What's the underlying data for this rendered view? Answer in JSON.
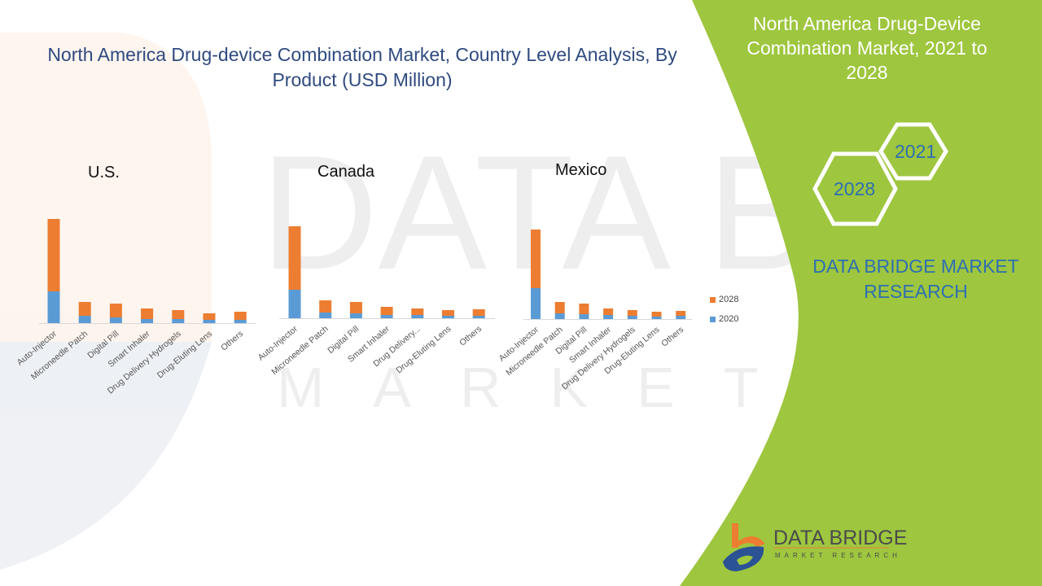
{
  "title": "North America Drug-device Combination Market, Country Level Analysis, By Product (USD Million)",
  "side_panel": {
    "title": "North America Drug-Device Combination Market, 2021 to 2028",
    "hex_years": [
      "2021",
      "2028"
    ],
    "brand_text": "DATA BRIDGE MARKET RESEARCH",
    "logo_text": "DATA BRIDGE",
    "logo_subtext": "MARKET RESEARCH"
  },
  "colors": {
    "series_2020": "#5b9bd5",
    "series_2028": "#ed7d31",
    "panel_green": "#9ec63f",
    "title_blue": "#2f4a7f"
  },
  "chart_data": [
    {
      "type": "bar",
      "stacked": true,
      "title": "U.S.",
      "categories": [
        "Auto-Injector",
        "Microneedle Patch",
        "Digital Pill",
        "Smart Inhaler",
        "Drug Delivery Hydrogels",
        "Drug-Eluting Lens",
        "Others"
      ],
      "series": [
        {
          "name": "2020",
          "values": [
            39,
            9,
            7,
            5,
            5,
            4,
            4
          ]
        },
        {
          "name": "2028",
          "values": [
            89,
            17,
            17,
            13,
            11,
            8,
            10
          ]
        }
      ],
      "ylim": [
        0,
        130
      ],
      "grid": false,
      "legend": "right"
    },
    {
      "type": "bar",
      "stacked": true,
      "title": "Canada",
      "categories": [
        "Auto-Injector",
        "Microneedle Patch",
        "Digital Pill",
        "Smart Inhaler",
        "Drug Delivery...",
        "Drug-Eluting Lens",
        "Others"
      ],
      "series": [
        {
          "name": "2020",
          "values": [
            35,
            7,
            6,
            4,
            4,
            3,
            3
          ]
        },
        {
          "name": "2028",
          "values": [
            78,
            15,
            14,
            10,
            8,
            7,
            8
          ]
        }
      ],
      "ylim": [
        0,
        130
      ],
      "grid": false,
      "legend": "right"
    },
    {
      "type": "bar",
      "stacked": true,
      "title": "Mexico",
      "categories": [
        "Auto-Injector",
        "Microneedle Patch",
        "Digital Pill",
        "Smart Inhaler",
        "Drug Delivery Hydrogels",
        "Drug-Eluting Lens",
        "Others"
      ],
      "series": [
        {
          "name": "2020",
          "values": [
            38,
            7,
            6,
            5,
            4,
            3,
            4
          ]
        },
        {
          "name": "2028",
          "values": [
            72,
            14,
            13,
            8,
            7,
            6,
            6
          ]
        }
      ],
      "ylim": [
        0,
        130
      ],
      "grid": false,
      "legend": "right"
    }
  ]
}
